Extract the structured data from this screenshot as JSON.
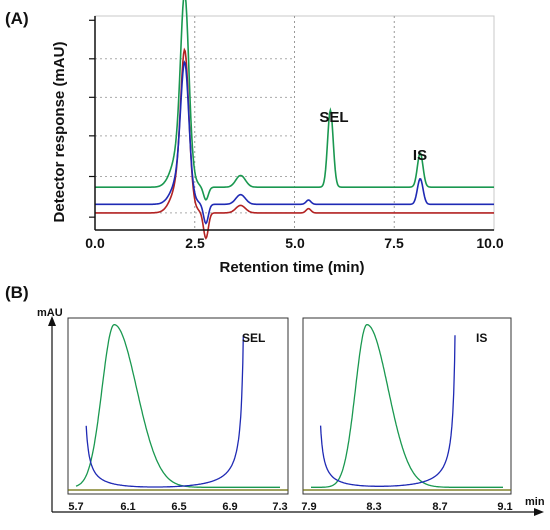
{
  "chart_data": [
    {
      "panel": "(A)",
      "type": "line",
      "xlabel": "Retention time (min)",
      "ylabel": "Detector response (mAU)",
      "xlim": [
        0.0,
        10.0
      ],
      "x_ticks": [
        "0.0",
        "2.5",
        "5.0",
        "7.5",
        "10.0"
      ],
      "grid": "vertical dotted at 2.5, 5.0, 7.5 and horizontal dotted",
      "annotations": [
        {
          "text": "SEL",
          "x": 5.9
        },
        {
          "text": "IS",
          "x": 8.15
        }
      ],
      "series": [
        {
          "color": "#1a9850",
          "baseline": 0.2,
          "peaks": [
            {
              "x": 2.25,
              "height": 0.93
            },
            {
              "x": 5.9,
              "height": 0.36
            },
            {
              "x": 8.15,
              "height": 0.16
            }
          ]
        },
        {
          "color": "#1f2ab4",
          "baseline": 0.12,
          "peaks": [
            {
              "x": 2.25,
              "height": 0.68
            },
            {
              "x": 8.15,
              "height": 0.12
            }
          ]
        },
        {
          "color": "#b22222",
          "baseline": 0.08,
          "peaks": [
            {
              "x": 2.25,
              "height": 0.78
            }
          ]
        }
      ]
    },
    {
      "panel": "(B)",
      "type": "line",
      "ylabel": "mAU",
      "xlabel": "min",
      "subplots": [
        {
          "title": "SEL",
          "xlim": [
            5.7,
            7.3
          ],
          "x_ticks": [
            "5.7",
            "6.1",
            "6.5",
            "6.9",
            "7.3"
          ],
          "series": [
            {
              "color": "#1a9850",
              "peak_x": 6.0
            },
            {
              "color": "#1f2ab4",
              "min_x": 6.0
            },
            {
              "color": "#6b6b00",
              "flat": true
            }
          ]
        },
        {
          "title": "IS",
          "xlim": [
            7.9,
            9.1
          ],
          "x_ticks": [
            "7.9",
            "8.3",
            "8.7",
            "9.1"
          ],
          "series": [
            {
              "color": "#1a9850",
              "peak_x": 8.25
            },
            {
              "color": "#1f2ab4",
              "min_x": 8.15
            },
            {
              "color": "#6b6b00",
              "flat": true
            }
          ]
        }
      ]
    }
  ],
  "panel_a": {
    "label": "(A)",
    "ylabel": "Detector response (mAU)",
    "xlabel": "Retention time (min)",
    "ticks": [
      "0.0",
      "2.5",
      "5.0",
      "7.5",
      "10.0"
    ],
    "peak_sel": "SEL",
    "peak_is": "IS"
  },
  "panel_b": {
    "label": "(B)",
    "ylabel": "mAU",
    "xlabel": "min",
    "left_title": "SEL",
    "right_title": "IS",
    "left_ticks": [
      "5.7",
      "6.1",
      "6.5",
      "6.9",
      "7.3"
    ],
    "right_ticks": [
      "7.9",
      "8.3",
      "8.7",
      "9.1"
    ]
  }
}
